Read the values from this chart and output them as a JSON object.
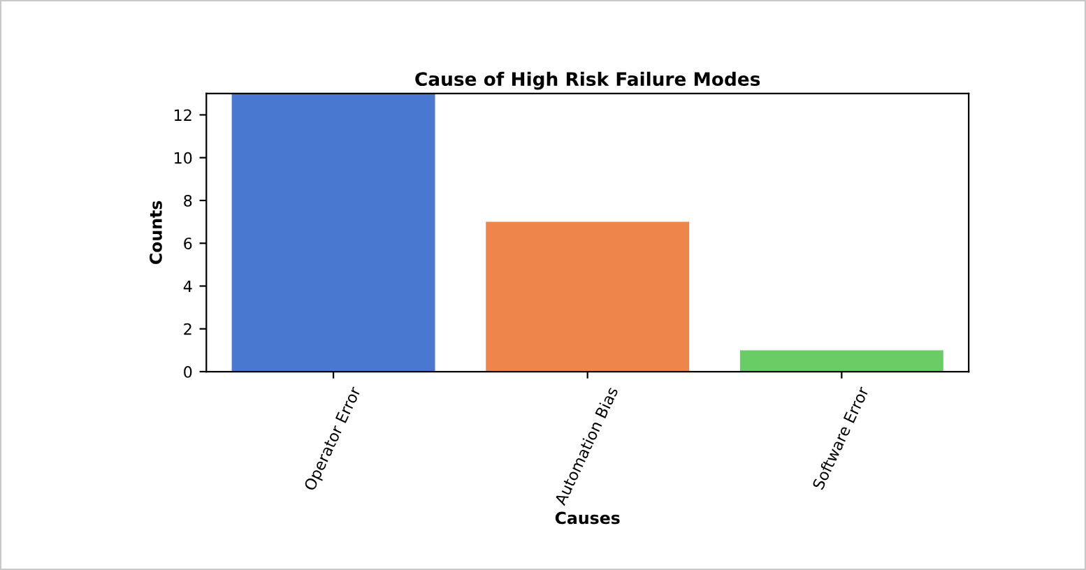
{
  "chart_data": {
    "type": "bar",
    "title": "Cause of High Risk Failure Modes",
    "xlabel": "Causes",
    "ylabel": "Counts",
    "categories": [
      "Operator Error",
      "Automation Bias",
      "Software Error"
    ],
    "values": [
      13,
      7,
      1
    ],
    "colors": [
      "#4878d0",
      "#ee854a",
      "#6acc64"
    ],
    "ylim": [
      0,
      13
    ],
    "yticks": [
      0,
      2,
      4,
      6,
      8,
      10,
      12
    ],
    "grid": false,
    "legend": false
  }
}
